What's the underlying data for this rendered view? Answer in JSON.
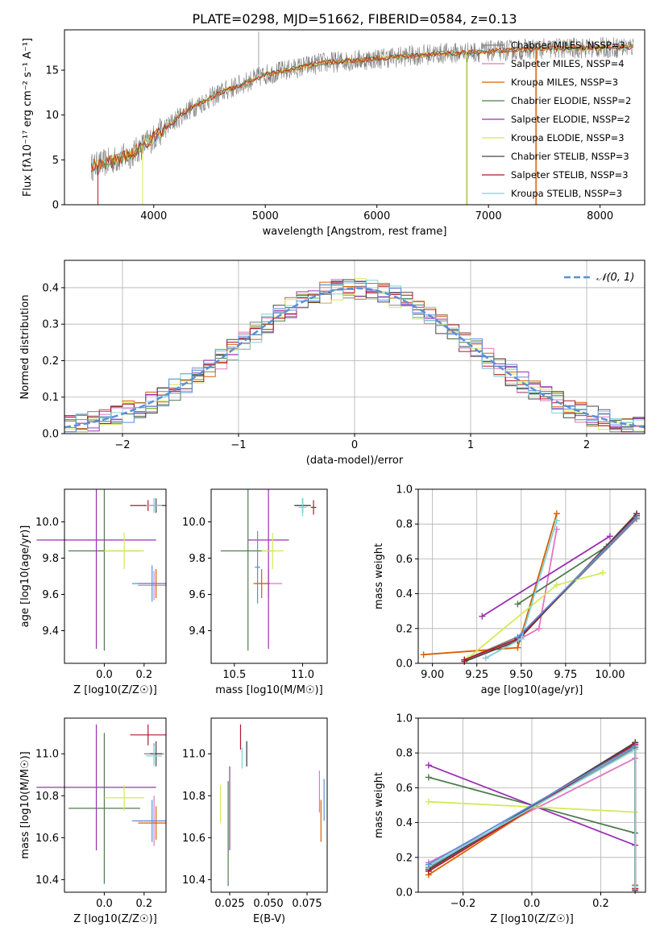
{
  "figure": {
    "title": "PLATE=0298, MJD=51662, FIBERID=0584, z=0.13"
  },
  "colors": {
    "chabrier_miles": "#808080",
    "salpeter_miles": "#e377c2",
    "kroupa_miles": "#d95f02",
    "chabrier_elodie": "#4f7d4f",
    "salpeter_elodie": "#9b30b0",
    "kroupa_elodie": "#d4ea5a",
    "chabrier_stelib": "#444444",
    "salpeter_stelib": "#b2182b",
    "kroupa_stelib": "#7fd4d8",
    "blue": "#5b8fd9",
    "normal": "#5b8fd9"
  },
  "chart_data": [
    {
      "type": "line",
      "xlabel": "wavelength [Angstrom, rest frame]",
      "ylabel": "Flux [fλ10⁻¹⁷ erg cm⁻² s⁻¹ A⁻¹]",
      "xlim": [
        3200,
        8400
      ],
      "ylim": [
        0,
        19.5
      ],
      "xticks": [
        "4000",
        "5000",
        "6000",
        "7000",
        "8000"
      ],
      "yticks": [
        "0",
        "5",
        "10",
        "15"
      ],
      "legend": [
        "Chabrier MILES, NSSP=3",
        "Salpeter MILES, NSSP=4",
        "Kroupa MILES, NSSP=3",
        "Chabrier ELODIE, NSSP=2",
        "Salpeter ELODIE, NSSP=2",
        "Kroupa ELODIE, NSSP=3",
        "Chabrier STELIB, NSSP=3",
        "Salpeter STELIB, NSSP=3",
        "Kroupa STELIB, NSSP=3"
      ],
      "legend_position": "right",
      "continuum": [
        [
          3440,
          4.2
        ],
        [
          3600,
          4.8
        ],
        [
          3800,
          5.6
        ],
        [
          4000,
          7.5
        ],
        [
          4300,
          10.5
        ],
        [
          4600,
          12.5
        ],
        [
          5000,
          14.5
        ],
        [
          5500,
          15.8
        ],
        [
          6000,
          16.3
        ],
        [
          6500,
          16.8
        ],
        [
          7000,
          17.1
        ],
        [
          7500,
          17.4
        ],
        [
          8000,
          17.5
        ],
        [
          8300,
          17.6
        ]
      ]
    },
    {
      "type": "bar",
      "xlabel": "(data-model)/error",
      "ylabel": "Normed distribution",
      "xlim": [
        -2.5,
        2.5
      ],
      "ylim": [
        0,
        0.475
      ],
      "xticks": [
        "−2",
        "−1",
        "0",
        "1",
        "2"
      ],
      "yticks": [
        "0.0",
        "0.1",
        "0.2",
        "0.3",
        "0.4"
      ],
      "grid": true,
      "legend": [
        "𝒩(0, 1)"
      ],
      "legend_position": "top-right",
      "bin_width": 0.1
    },
    {
      "type": "scatter",
      "xlabel": "Z [log10(Z/Z☉)]",
      "ylabel": "age  [log10(age/yr)]",
      "xlim": [
        -0.2,
        0.31
      ],
      "ylim": [
        9.22,
        10.18
      ],
      "xticks": [
        "0.0",
        "0.2"
      ],
      "yticks": [
        "9.4",
        "9.6",
        "9.8",
        "10.0"
      ],
      "points": [
        {
          "s": "chabrier_miles",
          "x": 0.25,
          "y": 10.09,
          "ex": 0.05,
          "ey": 0.04
        },
        {
          "s": "salpeter_miles",
          "x": 0.25,
          "y": 9.65,
          "ex": 0.08,
          "ey": 0.08
        },
        {
          "s": "kroupa_miles",
          "x": 0.26,
          "y": 9.66,
          "ex": 0.09,
          "ey": 0.08
        },
        {
          "s": "chabrier_elodie",
          "x": 0.0,
          "y": 9.84,
          "ex": 0.18,
          "ey": 0.55
        },
        {
          "s": "salpeter_elodie",
          "x": -0.04,
          "y": 9.9,
          "ex": 0.3,
          "ey": 0.6
        },
        {
          "s": "kroupa_elodie",
          "x": 0.1,
          "y": 9.84,
          "ex": 0.1,
          "ey": 0.1
        },
        {
          "s": "chabrier_stelib",
          "x": 0.26,
          "y": 10.09,
          "ex": 0.03,
          "ey": 0.04
        },
        {
          "s": "salpeter_stelib",
          "x": 0.22,
          "y": 10.09,
          "ex": 0.09,
          "ey": 0.03
        },
        {
          "s": "kroupa_stelib",
          "x": 0.25,
          "y": 10.09,
          "ex": 0.04,
          "ey": 0.04
        },
        {
          "s": "blue",
          "x": 0.24,
          "y": 9.66,
          "ex": 0.1,
          "ey": 0.1
        }
      ]
    },
    {
      "type": "scatter",
      "xlabel": "mass [log10(M/M☉)]",
      "ylabel": "",
      "xlim": [
        10.33,
        11.18
      ],
      "ylim": [
        9.22,
        10.18
      ],
      "xticks": [
        "10.5",
        "11.0"
      ],
      "yticks": [
        "9.4",
        "9.6",
        "9.8",
        "10.0"
      ],
      "points": [
        {
          "s": "chabrier_miles",
          "x": 11.0,
          "y": 10.09,
          "ex": 0.06,
          "ey": 0.04
        },
        {
          "s": "salpeter_miles",
          "x": 10.75,
          "y": 9.66,
          "ex": 0.1,
          "ey": 0.08
        },
        {
          "s": "kroupa_miles",
          "x": 10.7,
          "y": 9.66,
          "ex": 0.06,
          "ey": 0.08
        },
        {
          "s": "chabrier_elodie",
          "x": 10.6,
          "y": 9.84,
          "ex": 0.2,
          "ey": 0.55
        },
        {
          "s": "salpeter_elodie",
          "x": 10.75,
          "y": 9.9,
          "ex": 0.15,
          "ey": 0.6
        },
        {
          "s": "kroupa_elodie",
          "x": 10.78,
          "y": 9.84,
          "ex": 0.08,
          "ey": 0.1
        },
        {
          "s": "chabrier_stelib",
          "x": 11.0,
          "y": 10.09,
          "ex": 0.06,
          "ey": 0.04
        },
        {
          "s": "salpeter_stelib",
          "x": 11.08,
          "y": 10.08,
          "ex": 0.02,
          "ey": 0.04
        },
        {
          "s": "kroupa_stelib",
          "x": 11.0,
          "y": 10.08,
          "ex": 0.03,
          "ey": 0.05
        },
        {
          "s": "blue",
          "x": 10.67,
          "y": 9.75,
          "ex": 0.02,
          "ey": 0.2
        }
      ]
    },
    {
      "type": "line",
      "xlabel": "age  [log10(age/yr)]",
      "ylabel": "mass weight",
      "xlim": [
        8.92,
        10.2
      ],
      "ylim": [
        0,
        1
      ],
      "xticks": [
        "9.00",
        "9.25",
        "9.50",
        "9.75",
        "10.00"
      ],
      "yticks": [
        "0.0",
        "0.2",
        "0.4",
        "0.6",
        "0.8",
        "1.0"
      ],
      "grid": true,
      "series": [
        {
          "s": "chabrier_miles",
          "x": [
            9.18,
            9.5,
            10.15
          ],
          "y": [
            0.02,
            0.16,
            0.83
          ]
        },
        {
          "s": "salpeter_miles",
          "x": [
            9.3,
            9.6,
            9.7
          ],
          "y": [
            0.03,
            0.2,
            0.77
          ]
        },
        {
          "s": "kroupa_miles",
          "x": [
            8.95,
            9.48,
            9.7
          ],
          "y": [
            0.05,
            0.09,
            0.86
          ]
        },
        {
          "s": "chabrier_elodie",
          "x": [
            9.48,
            9.98
          ],
          "y": [
            0.34,
            0.67
          ]
        },
        {
          "s": "salpeter_elodie",
          "x": [
            9.28,
            10.0
          ],
          "y": [
            0.27,
            0.73
          ]
        },
        {
          "s": "kroupa_elodie",
          "x": [
            9.2,
            9.7,
            9.96
          ],
          "y": [
            0.03,
            0.45,
            0.52
          ]
        },
        {
          "s": "chabrier_stelib",
          "x": [
            9.18,
            9.48,
            10.15
          ],
          "y": [
            0.01,
            0.13,
            0.86
          ]
        },
        {
          "s": "salpeter_stelib",
          "x": [
            9.18,
            9.48,
            10.15
          ],
          "y": [
            0.02,
            0.14,
            0.85
          ]
        },
        {
          "s": "kroupa_stelib",
          "x": [
            9.3,
            9.5,
            9.7
          ],
          "y": [
            0.03,
            0.14,
            0.82
          ]
        },
        {
          "s": "blue",
          "x": [
            9.48,
            10.15
          ],
          "y": [
            0.15,
            0.84
          ]
        }
      ]
    },
    {
      "type": "scatter",
      "xlabel": "Z [log10(Z/Z☉)]",
      "ylabel": "mass [log10(M/M☉)]",
      "xlim": [
        -0.2,
        0.31
      ],
      "ylim": [
        10.34,
        11.17
      ],
      "xticks": [
        "0.0",
        "0.2"
      ],
      "yticks": [
        "10.4",
        "10.6",
        "10.8",
        "11.0"
      ],
      "points": [
        {
          "s": "chabrier_miles",
          "x": 0.25,
          "y": 11.0,
          "ex": 0.05,
          "ey": 0.05
        },
        {
          "s": "salpeter_miles",
          "x": 0.25,
          "y": 10.68,
          "ex": 0.08,
          "ey": 0.12
        },
        {
          "s": "kroupa_miles",
          "x": 0.26,
          "y": 10.67,
          "ex": 0.09,
          "ey": 0.08
        },
        {
          "s": "chabrier_elodie",
          "x": 0.0,
          "y": 10.74,
          "ex": 0.18,
          "ey": 0.36
        },
        {
          "s": "salpeter_elodie",
          "x": -0.04,
          "y": 10.84,
          "ex": 0.3,
          "ey": 0.3
        },
        {
          "s": "kroupa_elodie",
          "x": 0.1,
          "y": 10.79,
          "ex": 0.1,
          "ey": 0.06
        },
        {
          "s": "chabrier_stelib",
          "x": 0.26,
          "y": 11.0,
          "ex": 0.03,
          "ey": 0.06
        },
        {
          "s": "salpeter_stelib",
          "x": 0.22,
          "y": 11.09,
          "ex": 0.09,
          "ey": 0.05
        },
        {
          "s": "kroupa_stelib",
          "x": 0.25,
          "y": 10.99,
          "ex": 0.04,
          "ey": 0.05
        },
        {
          "s": "blue",
          "x": 0.24,
          "y": 10.68,
          "ex": 0.1,
          "ey": 0.1
        }
      ]
    },
    {
      "type": "scatter",
      "xlabel": "E(B-V)",
      "ylabel": "",
      "xlim": [
        0.013,
        0.088
      ],
      "ylim": [
        10.34,
        11.17
      ],
      "xticks": [
        "0.025",
        "0.050",
        "0.075"
      ],
      "yticks": [
        "10.4",
        "10.6",
        "10.8",
        "11.0"
      ],
      "points": [
        {
          "s": "chabrier_miles",
          "x": 0.036,
          "y": 11.0,
          "ey": 0.06
        },
        {
          "s": "salpeter_miles",
          "x": 0.083,
          "y": 10.82,
          "ey": 0.1
        },
        {
          "s": "kroupa_miles",
          "x": 0.084,
          "y": 10.68,
          "ey": 0.1
        },
        {
          "s": "chabrier_elodie",
          "x": 0.024,
          "y": 10.62,
          "ey": 0.25
        },
        {
          "s": "salpeter_elodie",
          "x": 0.025,
          "y": 10.74,
          "ey": 0.2
        },
        {
          "s": "kroupa_elodie",
          "x": 0.019,
          "y": 10.76,
          "ey": 0.09
        },
        {
          "s": "chabrier_stelib",
          "x": 0.036,
          "y": 11.0,
          "ey": 0.06
        },
        {
          "s": "salpeter_stelib",
          "x": 0.032,
          "y": 11.08,
          "ey": 0.06
        },
        {
          "s": "kroupa_stelib",
          "x": 0.033,
          "y": 10.98,
          "ey": 0.05
        },
        {
          "s": "blue",
          "x": 0.086,
          "y": 10.78,
          "ey": 0.1
        }
      ]
    },
    {
      "type": "line",
      "xlabel": "Z [log10(Z/Z☉)]",
      "ylabel": "mass weight",
      "xlim": [
        -0.33,
        0.33
      ],
      "ylim": [
        0,
        1
      ],
      "xticks": [
        "−0.2",
        "0.0",
        "0.2"
      ],
      "yticks": [
        "0.0",
        "0.2",
        "0.4",
        "0.6",
        "0.8",
        "1.0"
      ],
      "grid": true,
      "series": [
        {
          "s": "chabrier_miles",
          "x": [
            -0.3,
            0.3,
            0.3
          ],
          "y": [
            0.14,
            0.83,
            0.02
          ]
        },
        {
          "s": "salpeter_miles",
          "x": [
            -0.3,
            0.3,
            0.3
          ],
          "y": [
            0.17,
            0.77,
            0.04
          ]
        },
        {
          "s": "kroupa_miles",
          "x": [
            -0.3,
            0.3,
            0.3
          ],
          "y": [
            0.1,
            0.86,
            0.04
          ]
        },
        {
          "s": "chabrier_elodie",
          "x": [
            -0.3,
            0.3
          ],
          "y": [
            0.66,
            0.34
          ]
        },
        {
          "s": "salpeter_elodie",
          "x": [
            -0.3,
            0.3
          ],
          "y": [
            0.73,
            0.27
          ]
        },
        {
          "s": "kroupa_elodie",
          "x": [
            -0.3,
            0.3
          ],
          "y": [
            0.52,
            0.46
          ]
        },
        {
          "s": "chabrier_stelib",
          "x": [
            -0.3,
            0.3,
            0.3
          ],
          "y": [
            0.13,
            0.86,
            0.01
          ]
        },
        {
          "s": "salpeter_stelib",
          "x": [
            -0.3,
            0.3,
            0.3
          ],
          "y": [
            0.12,
            0.85,
            0.02
          ]
        },
        {
          "s": "kroupa_stelib",
          "x": [
            -0.3,
            0.3,
            0.3
          ],
          "y": [
            0.15,
            0.82,
            0.03
          ]
        },
        {
          "s": "blue",
          "x": [
            -0.3,
            0.3
          ],
          "y": [
            0.16,
            0.84
          ]
        }
      ]
    }
  ]
}
